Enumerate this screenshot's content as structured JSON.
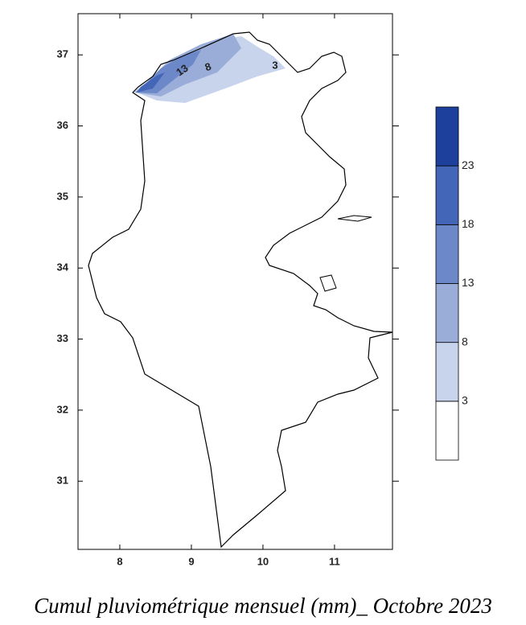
{
  "map": {
    "title": "Cumul pluviométrique mensuel (mm)_ Octobre 2023",
    "xlim": [
      7.416,
      11.81
    ],
    "ylim": [
      30.04,
      37.58
    ],
    "xticks": [
      8,
      9,
      10,
      11
    ],
    "yticks": [
      31,
      32,
      33,
      34,
      35,
      36,
      37
    ],
    "contour_labels": [
      13,
      8,
      3
    ],
    "colorbar": {
      "levels": [
        3,
        8,
        13,
        18,
        23
      ],
      "colors": [
        "#ffffff",
        "#c8d3ec",
        "#9aadd9",
        "#6d88c8",
        "#4466b8",
        "#1c409c"
      ]
    }
  }
}
